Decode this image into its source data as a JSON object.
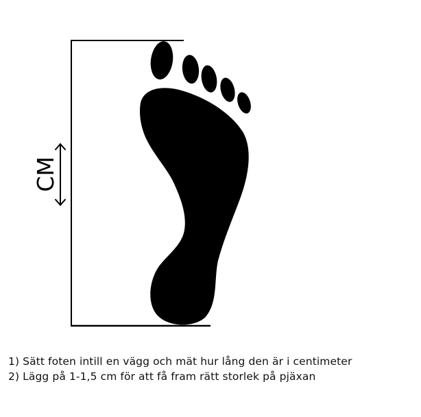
{
  "diagram": {
    "unit_label": "CM",
    "colors": {
      "ink": "#000000",
      "background": "#ffffff"
    },
    "icons": [
      "foot-icon",
      "double-arrow-icon"
    ]
  },
  "instructions": [
    "1) Sätt foten intill en vägg och mät hur lång den är i centimeter",
    "2) Lägg på 1-1,5 cm för att få fram rätt storlek på pjäxan"
  ]
}
